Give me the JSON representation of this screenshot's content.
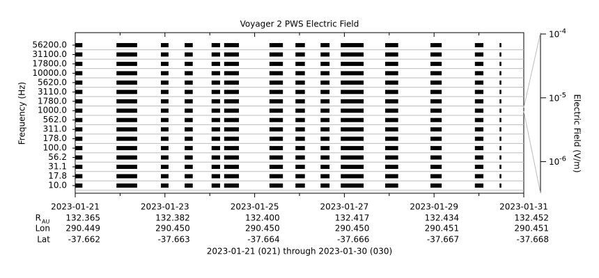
{
  "chart_data": {
    "type": "burst-coverage",
    "title": "Voyager 2 PWS Electric Field",
    "ylabel": "Frequency (Hz)",
    "categories": [
      "10.0",
      "17.8",
      "31.1",
      "56.2",
      "100.0",
      "178.0",
      "311.0",
      "562.0",
      "1000.0",
      "1780.0",
      "3110.0",
      "5620.0",
      "10000.0",
      "17800.0",
      "31100.0",
      "56200.0"
    ],
    "xlim": [
      0,
      10
    ],
    "xticks": [
      {
        "value": 0,
        "label": "2023-01-21"
      },
      {
        "value": 2,
        "label": "2023-01-23"
      },
      {
        "value": 4,
        "label": "2023-01-25"
      },
      {
        "value": 6,
        "label": "2023-01-27"
      },
      {
        "value": 8,
        "label": "2023-01-29"
      },
      {
        "value": 10,
        "label": "2023-01-31"
      }
    ],
    "xminorticks": [
      1,
      3,
      5,
      7,
      9
    ],
    "intervals": [
      [
        0,
        0.16
      ],
      [
        0.92,
        1.38
      ],
      [
        1.91,
        2.08
      ],
      [
        2.44,
        2.62
      ],
      [
        3.04,
        3.23
      ],
      [
        3.32,
        3.65
      ],
      [
        4.33,
        4.63
      ],
      [
        4.91,
        5.12
      ],
      [
        5.47,
        5.67
      ],
      [
        5.92,
        6.43
      ],
      [
        6.91,
        7.2
      ],
      [
        7.92,
        8.17
      ],
      [
        8.91,
        9.1
      ],
      [
        9.46,
        9.5
      ]
    ],
    "color": "#000000",
    "grid": true,
    "y2label": "Electric Field (V/m)",
    "y2log": true,
    "y2lim": [
      3.2e-07,
      0.000105
    ],
    "y2ticks": [
      {
        "value": 0.0001,
        "label": "10",
        "exponent": "-4"
      },
      {
        "value": 1e-05,
        "label": "10",
        "exponent": "-5"
      },
      {
        "value": 1e-06,
        "label": "10",
        "exponent": "-6"
      }
    ],
    "ephemeris": [
      {
        "name": "R",
        "subscript": "AU",
        "values": [
          "132.365",
          "132.382",
          "132.400",
          "132.417",
          "132.434",
          "132.452"
        ]
      },
      {
        "name": "Lon",
        "values": [
          "290.449",
          "290.450",
          "290.450",
          "290.450",
          "290.451",
          "290.451"
        ]
      },
      {
        "name": "Lat",
        "values": [
          "-37.662",
          "-37.663",
          "-37.664",
          "-37.666",
          "-37.667",
          "-37.668"
        ]
      }
    ],
    "footer": "2023-01-21 (021) through 2023-01-30 (030)"
  }
}
